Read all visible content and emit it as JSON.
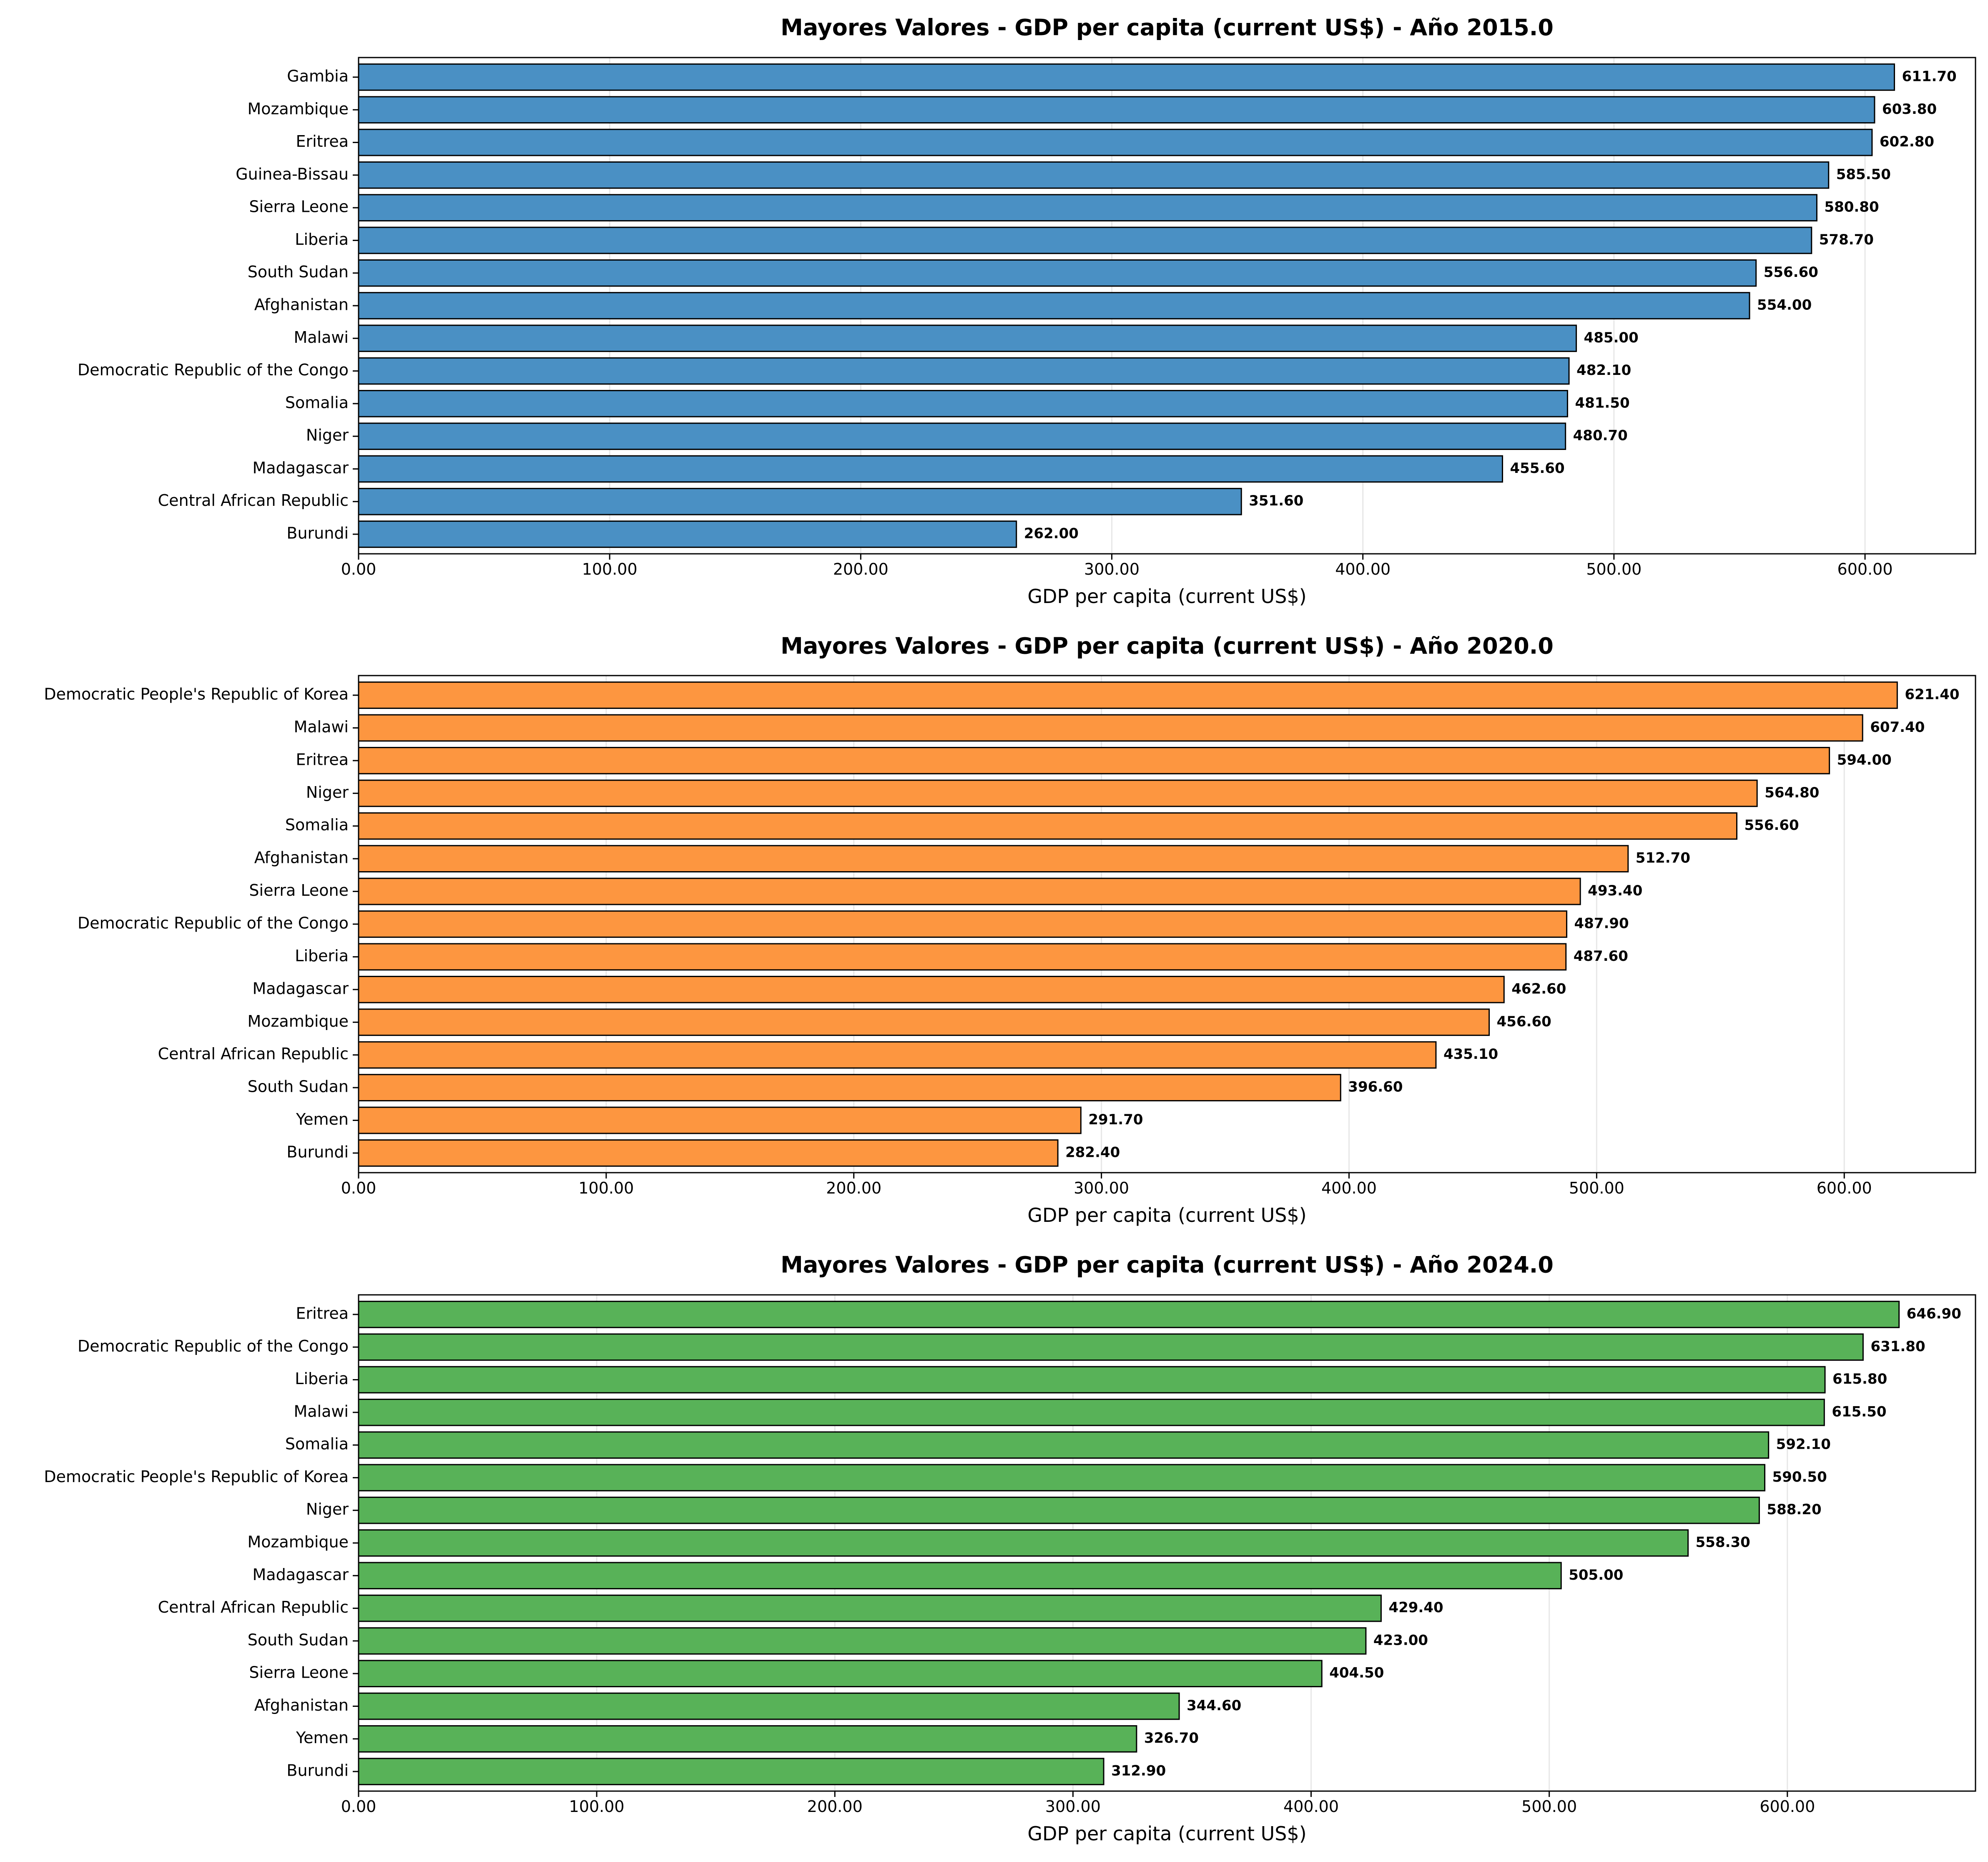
{
  "chart_data": [
    {
      "type": "bar",
      "orientation": "horizontal",
      "title": "Mayores Valores - GDP per capita (current US$) - Año 2015.0",
      "xlabel": "GDP per capita (current US$)",
      "ylabel": "",
      "color": "#4a90c4",
      "xlim": [
        0,
        644
      ],
      "xticks": [
        "0.00",
        "100.00",
        "200.00",
        "300.00",
        "400.00",
        "500.00",
        "600.00"
      ],
      "grid": "vertical",
      "categories": [
        "Gambia",
        "Mozambique",
        "Eritrea",
        "Guinea-Bissau",
        "Sierra Leone",
        "Liberia",
        "South Sudan",
        "Afghanistan",
        "Malawi",
        "Democratic Republic of the Congo",
        "Somalia",
        "Niger",
        "Madagascar",
        "Central African Republic",
        "Burundi"
      ],
      "values": [
        611.7,
        603.8,
        602.8,
        585.5,
        580.8,
        578.7,
        556.6,
        554.0,
        485.0,
        482.1,
        481.5,
        480.7,
        455.6,
        351.6,
        262.0
      ],
      "value_labels": [
        "611.70",
        "603.80",
        "602.80",
        "585.50",
        "580.80",
        "578.70",
        "556.60",
        "554.00",
        "485.00",
        "482.10",
        "481.50",
        "480.70",
        "455.60",
        "351.60",
        "262.00"
      ]
    },
    {
      "type": "bar",
      "orientation": "horizontal",
      "title": "Mayores Valores - GDP per capita (current US$) - Año 2020.0",
      "xlabel": "GDP per capita (current US$)",
      "ylabel": "",
      "color": "#fd9640",
      "xlim": [
        0,
        653
      ],
      "xticks": [
        "0.00",
        "100.00",
        "200.00",
        "300.00",
        "400.00",
        "500.00",
        "600.00"
      ],
      "grid": "vertical",
      "categories": [
        "Democratic People's Republic of Korea",
        "Malawi",
        "Eritrea",
        "Niger",
        "Somalia",
        "Afghanistan",
        "Sierra Leone",
        "Democratic Republic of the Congo",
        "Liberia",
        "Madagascar",
        "Mozambique",
        "Central African Republic",
        "South Sudan",
        "Yemen",
        "Burundi"
      ],
      "values": [
        621.4,
        607.4,
        594.0,
        564.8,
        556.6,
        512.7,
        493.4,
        487.9,
        487.6,
        462.6,
        456.6,
        435.1,
        396.6,
        291.7,
        282.4
      ],
      "value_labels": [
        "621.40",
        "607.40",
        "594.00",
        "564.80",
        "556.60",
        "512.70",
        "493.40",
        "487.90",
        "487.60",
        "462.60",
        "456.60",
        "435.10",
        "396.60",
        "291.70",
        "282.40"
      ]
    },
    {
      "type": "bar",
      "orientation": "horizontal",
      "title": "Mayores Valores - GDP per capita (current US$) - Año 2024.0",
      "xlabel": "GDP per capita (current US$)",
      "ylabel": "",
      "color": "#58b258",
      "xlim": [
        0,
        679
      ],
      "xticks": [
        "0.00",
        "100.00",
        "200.00",
        "300.00",
        "400.00",
        "500.00",
        "600.00"
      ],
      "grid": "vertical",
      "categories": [
        "Eritrea",
        "Democratic Republic of the Congo",
        "Liberia",
        "Malawi",
        "Somalia",
        "Democratic People's Republic of Korea",
        "Niger",
        "Mozambique",
        "Madagascar",
        "Central African Republic",
        "South Sudan",
        "Sierra Leone",
        "Afghanistan",
        "Yemen",
        "Burundi"
      ],
      "values": [
        646.9,
        631.8,
        615.8,
        615.5,
        592.1,
        590.5,
        588.2,
        558.3,
        505.0,
        429.4,
        423.0,
        404.5,
        344.6,
        326.7,
        312.9
      ],
      "value_labels": [
        "646.90",
        "631.80",
        "615.80",
        "615.50",
        "592.10",
        "590.50",
        "588.20",
        "558.30",
        "505.00",
        "429.40",
        "423.00",
        "404.50",
        "344.60",
        "326.70",
        "312.90"
      ]
    }
  ]
}
